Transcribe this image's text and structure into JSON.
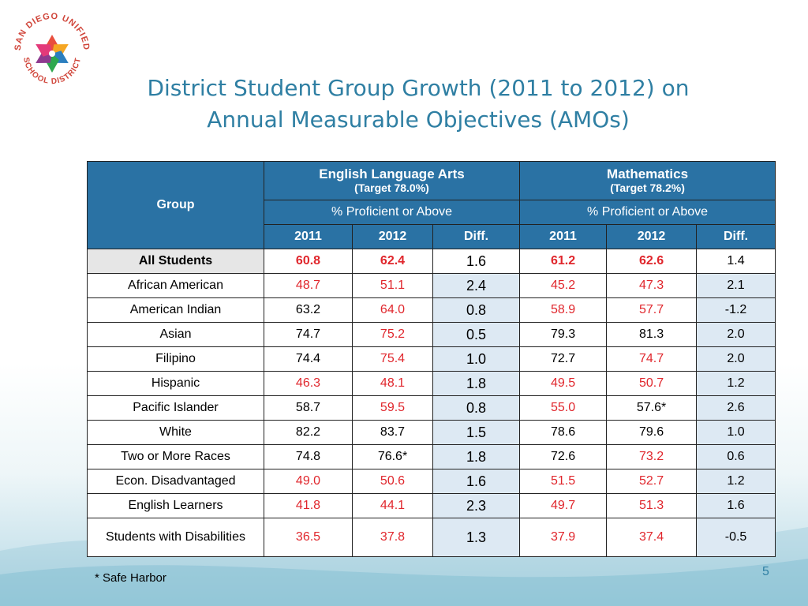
{
  "logo": {
    "text_top": "SAN DIEGO UNIFIED",
    "text_bottom": "SCHOOL DISTRICT",
    "colors": [
      "#e94e3d",
      "#f5a623",
      "#2c7fbf",
      "#2fa84f",
      "#8e3a8f",
      "#e33a7a"
    ]
  },
  "title": {
    "line1": "District Student Group Growth (2011 to 2012) on",
    "line2": "Annual Measurable Objectives (AMOs)"
  },
  "table": {
    "group_header": "Group",
    "subjects": [
      {
        "name": "English Language Arts",
        "target": "(Target 78.0%)",
        "measure": "% Proficient or Above"
      },
      {
        "name": "Mathematics",
        "target": "(Target 78.2%)",
        "measure": "% Proficient or Above"
      }
    ],
    "column_labels": [
      "2011",
      "2012",
      "Diff.",
      "2011",
      "2012",
      "Diff."
    ],
    "rows": [
      {
        "group": "All Students",
        "ela_2011": "60.8",
        "ela_2012": "62.4",
        "ela_diff": "1.6",
        "math_2011": "61.2",
        "math_2012": "62.6",
        "math_diff": "1.4",
        "red": [
          true,
          true,
          true,
          true
        ]
      },
      {
        "group": "African American",
        "ela_2011": "48.7",
        "ela_2012": "51.1",
        "ela_diff": "2.4",
        "math_2011": "45.2",
        "math_2012": "47.3",
        "math_diff": "2.1",
        "red": [
          true,
          true,
          true,
          true
        ]
      },
      {
        "group": "American Indian",
        "ela_2011": "63.2",
        "ela_2012": "64.0",
        "ela_diff": "0.8",
        "math_2011": "58.9",
        "math_2012": "57.7",
        "math_diff": "-1.2",
        "red": [
          false,
          true,
          true,
          true
        ]
      },
      {
        "group": "Asian",
        "ela_2011": "74.7",
        "ela_2012": "75.2",
        "ela_diff": "0.5",
        "math_2011": "79.3",
        "math_2012": "81.3",
        "math_diff": "2.0",
        "red": [
          false,
          true,
          false,
          false
        ]
      },
      {
        "group": "Filipino",
        "ela_2011": "74.4",
        "ela_2012": "75.4",
        "ela_diff": "1.0",
        "math_2011": "72.7",
        "math_2012": "74.7",
        "math_diff": "2.0",
        "red": [
          false,
          true,
          false,
          true
        ]
      },
      {
        "group": "Hispanic",
        "ela_2011": "46.3",
        "ela_2012": "48.1",
        "ela_diff": "1.8",
        "math_2011": "49.5",
        "math_2012": "50.7",
        "math_diff": "1.2",
        "red": [
          true,
          true,
          true,
          true
        ]
      },
      {
        "group": "Pacific Islander",
        "ela_2011": "58.7",
        "ela_2012": "59.5",
        "ela_diff": "0.8",
        "math_2011": "55.0",
        "math_2012": "57.6*",
        "math_diff": "2.6",
        "red": [
          false,
          true,
          true,
          false
        ]
      },
      {
        "group": "White",
        "ela_2011": "82.2",
        "ela_2012": "83.7",
        "ela_diff": "1.5",
        "math_2011": "78.6",
        "math_2012": "79.6",
        "math_diff": "1.0",
        "red": [
          false,
          false,
          false,
          false
        ]
      },
      {
        "group": "Two or More Races",
        "ela_2011": "74.8",
        "ela_2012": "76.6*",
        "ela_diff": "1.8",
        "math_2011": "72.6",
        "math_2012": "73.2",
        "math_diff": "0.6",
        "red": [
          false,
          false,
          false,
          true
        ]
      },
      {
        "group": "Econ. Disadvantaged",
        "ela_2011": "49.0",
        "ela_2012": "50.6",
        "ela_diff": "1.6",
        "math_2011": "51.5",
        "math_2012": "52.7",
        "math_diff": "1.2",
        "red": [
          true,
          true,
          true,
          true
        ]
      },
      {
        "group": "English Learners",
        "ela_2011": "41.8",
        "ela_2012": "44.1",
        "ela_diff": "2.3",
        "math_2011": "49.7",
        "math_2012": "51.3",
        "math_diff": "1.6",
        "red": [
          true,
          true,
          true,
          true
        ]
      },
      {
        "group": "Students with Disabilities",
        "ela_2011": "36.5",
        "ela_2012": "37.8",
        "ela_diff": "1.3",
        "math_2011": "37.9",
        "math_2012": "37.4",
        "math_diff": "-0.5",
        "red": [
          true,
          true,
          true,
          true
        ]
      }
    ]
  },
  "footnote": "* Safe Harbor",
  "page_number": "5",
  "colors": {
    "header_bg": "#2a72a4",
    "diff_bg": "#dde9f3",
    "red_text": "#e0262c",
    "title": "#2f7fa3"
  }
}
